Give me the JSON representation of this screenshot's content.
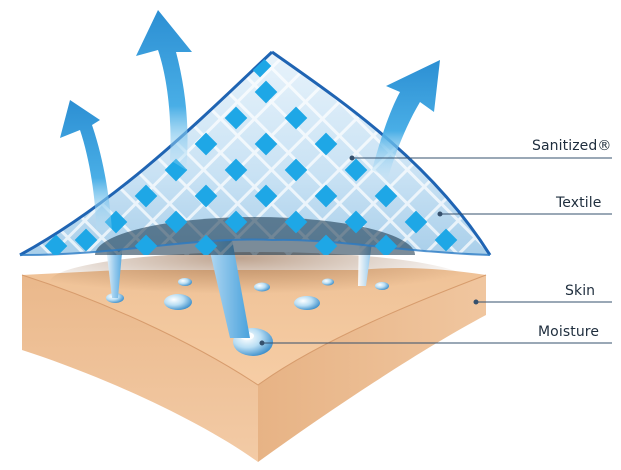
{
  "labels": {
    "sanitized": "Sanitized®",
    "textile": "Textile",
    "skin": "Skin",
    "moisture": "Moisture"
  },
  "colors": {
    "arrow_blue": "#2f9bd8",
    "diamond_blue": "#1ea7e6",
    "textile_light": "#cfe6f7",
    "textile_edge": "#1f64b3",
    "skin_top": "#f2c49a",
    "skin_side": "#e9b98e",
    "moisture_drop": "#7fc4ea",
    "leader_line": "#35506d",
    "text": "#1e2d3d"
  },
  "icons": [
    "arrow-up-icon",
    "droplet-icon"
  ]
}
